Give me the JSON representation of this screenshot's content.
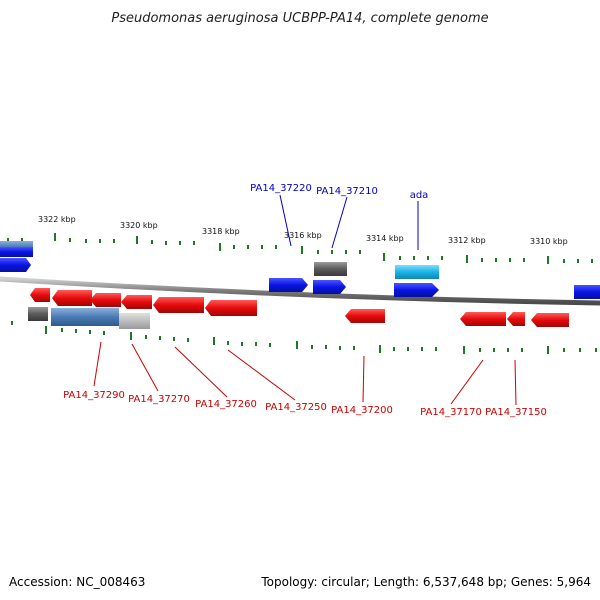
{
  "title": "Pseudomonas aeruginosa UCBPP-PA14, complete genome",
  "accession": "Accession: NC_008463",
  "summary": "Topology: circular; Length: 6,537,648 bp; Genes: 5,964",
  "colors": {
    "forward_gene": "#0a14e6",
    "reverse_gene": "#e60a0a",
    "grey_gene": "#6a6a6a",
    "light_blue_gene": "#19b4e6",
    "steel_blue_gene": "#4a7ab4",
    "tick": "#227722",
    "backbone": "#7a7a7a",
    "label_forward": "#0000cc",
    "label_reverse": "#cc0000"
  },
  "axis": {
    "unit": "kbp",
    "ticks": [
      {
        "kbp": 3322,
        "label": "3322 kbp"
      },
      {
        "kbp": 3320,
        "label": "3320 kbp"
      },
      {
        "kbp": 3318,
        "label": "3318 kbp"
      },
      {
        "kbp": 3316,
        "label": "3316 kbp"
      },
      {
        "kbp": 3314,
        "label": "3314 kbp"
      },
      {
        "kbp": 3312,
        "label": "3312 kbp"
      },
      {
        "kbp": 3310,
        "label": "3310 kbp"
      }
    ]
  },
  "gene_labels": {
    "forward": [
      "PA14_37220",
      "PA14_37210",
      "ada"
    ],
    "reverse": [
      "PA14_37290",
      "PA14_37270",
      "PA14_37260",
      "PA14_37250",
      "PA14_37200",
      "PA14_37170",
      "PA14_37150"
    ]
  }
}
